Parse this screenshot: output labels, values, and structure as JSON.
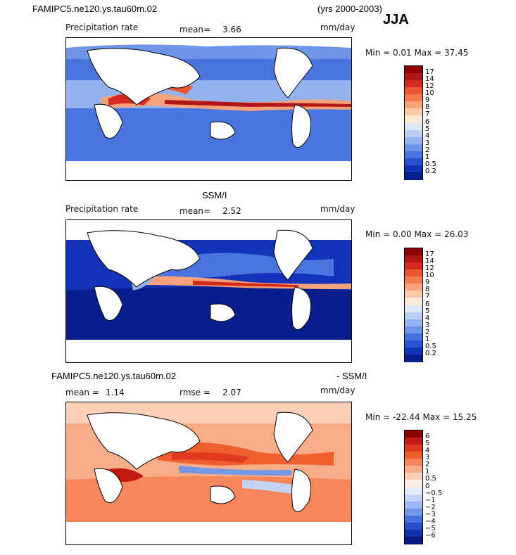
{
  "header": {
    "model_name": "FAMIPC5.ne120.ys.tau60m.02",
    "years": "(yrs 2000-2003)",
    "season": "JJA"
  },
  "panels": [
    {
      "id": "model",
      "title": "",
      "field": "Precipitation rate",
      "stat1_label": "mean=",
      "stat1_value": "3.66",
      "stat2_label": "",
      "stat2_value": "",
      "units": "mm/day",
      "minmax": "Min =   0.01 Max =  37.45"
    },
    {
      "id": "obs",
      "title": "SSM/I",
      "field": "Precipitation rate",
      "stat1_label": "mean=",
      "stat1_value": "2.52",
      "stat2_label": "",
      "stat2_value": "",
      "units": "mm/day",
      "minmax": "Min =   0.00 Max =  26.03"
    },
    {
      "id": "diff",
      "title_left": "FAMIPC5.ne120.ys.tau60m.02",
      "title_right": "- SSM/I",
      "field": "",
      "stat1_label": "mean =",
      "stat1_value": "1.14",
      "stat2_label": "rmse =",
      "stat2_value": "2.07",
      "units": "mm/day",
      "minmax": "Min = -22.44 Max =  15.25"
    }
  ],
  "colorbars": {
    "precip": {
      "levels": [
        "17",
        "14",
        "12",
        "10",
        "9",
        "8",
        "7",
        "6",
        "5",
        "4",
        "3",
        "2",
        "1",
        "0.5",
        "0.2"
      ],
      "colors": [
        "#8b0000",
        "#b01818",
        "#d42a1e",
        "#e8552e",
        "#f27a4e",
        "#f8a27c",
        "#fccaa8",
        "#fdebd8",
        "#dde8f8",
        "#b9cff4",
        "#94b3ee",
        "#6f95e8",
        "#4a74e0",
        "#2a52d4",
        "#1233b8",
        "#071e8c"
      ]
    },
    "diff": {
      "levels": [
        "6",
        "5",
        "4",
        "3",
        "2",
        "1",
        "0.5",
        "0",
        "−0.5",
        "−1",
        "−2",
        "−3",
        "−4",
        "−5",
        "−6"
      ],
      "colors": [
        "#8b0000",
        "#c21a10",
        "#e23a20",
        "#f0602e",
        "#f6875a",
        "#f9ac88",
        "#fcd0b8",
        "#fdece2",
        "#e4ecfa",
        "#c4d4f6",
        "#9cb8f0",
        "#7498e8",
        "#4a72de",
        "#2a4ec8",
        "#1430a8",
        "#061a80"
      ]
    }
  }
}
